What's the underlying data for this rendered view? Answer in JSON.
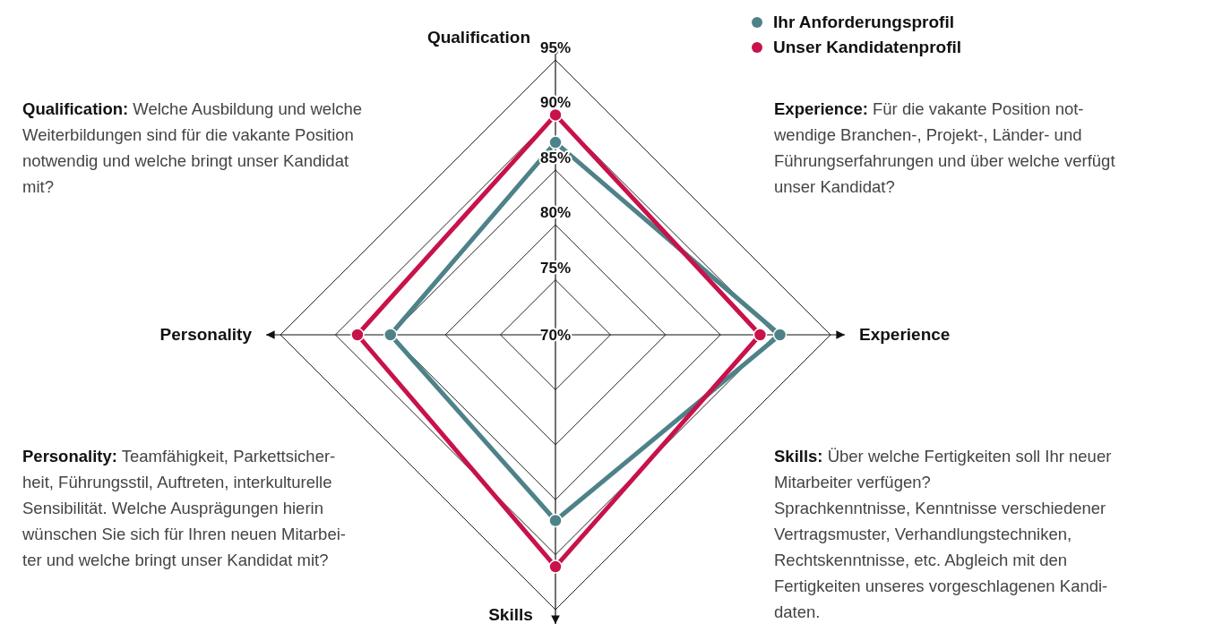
{
  "chart_data": {
    "type": "radar",
    "categories": [
      "Qualification",
      "Experience",
      "Skills",
      "Personality"
    ],
    "series": [
      {
        "name": "Ihr Anforderungsprofil",
        "color": "#4e8289",
        "values": [
          87.5,
          90.4,
          86.9,
          85
        ]
      },
      {
        "name": "Unser Kandidatenprofil",
        "color": "#c8124a",
        "values": [
          90,
          88.6,
          91.1,
          88
        ]
      }
    ],
    "ylim": [
      70,
      95
    ],
    "yticks": [
      {
        "value": 70,
        "label": "70%"
      },
      {
        "value": 75,
        "label": "75%"
      },
      {
        "value": 80,
        "label": "80%"
      },
      {
        "value": 85,
        "label": "85%"
      },
      {
        "value": 90,
        "label": "90%"
      },
      {
        "value": 95,
        "label": "95%"
      }
    ],
    "grid": true,
    "legend": "top right",
    "marker": "circle",
    "line_style": "solid",
    "annotations": [
      "Qualification: Welche Ausbildung und welche\nWeiterbildungen sind für die vakante Position\nnotwendig und welche bringt unser Kandidat\nmit?",
      "Experience: Für die vakante Position not-\nwendige Branchen-, Projekt-, Länder- und\nFührungserfahrungen und über welche verfügt\nunser Kandidat?",
      "Personality: Teamfähigkeit, Parkettsicher-\nheit, Führungsstil, Auftreten, interkulturelle\nSensibilität. Welche Ausprägungen hierin\nwünschen Sie sich für Ihren neuen Mitarbei-\nter und welche bringt unser Kandidat mit?",
      "Skills: Über welche Fertigkeiten soll Ihr neuer\nMitarbeiter verfügen?\nSprachkenntnisse, Kenntnisse verschiedener\nVertragsmuster, Verhandlungstechniken,\nRechtskenntnisse, etc. Abgleich mit den\nFertigkeiten unseres vorgeschlagenen Kandi-\ndaten."
    ]
  }
}
